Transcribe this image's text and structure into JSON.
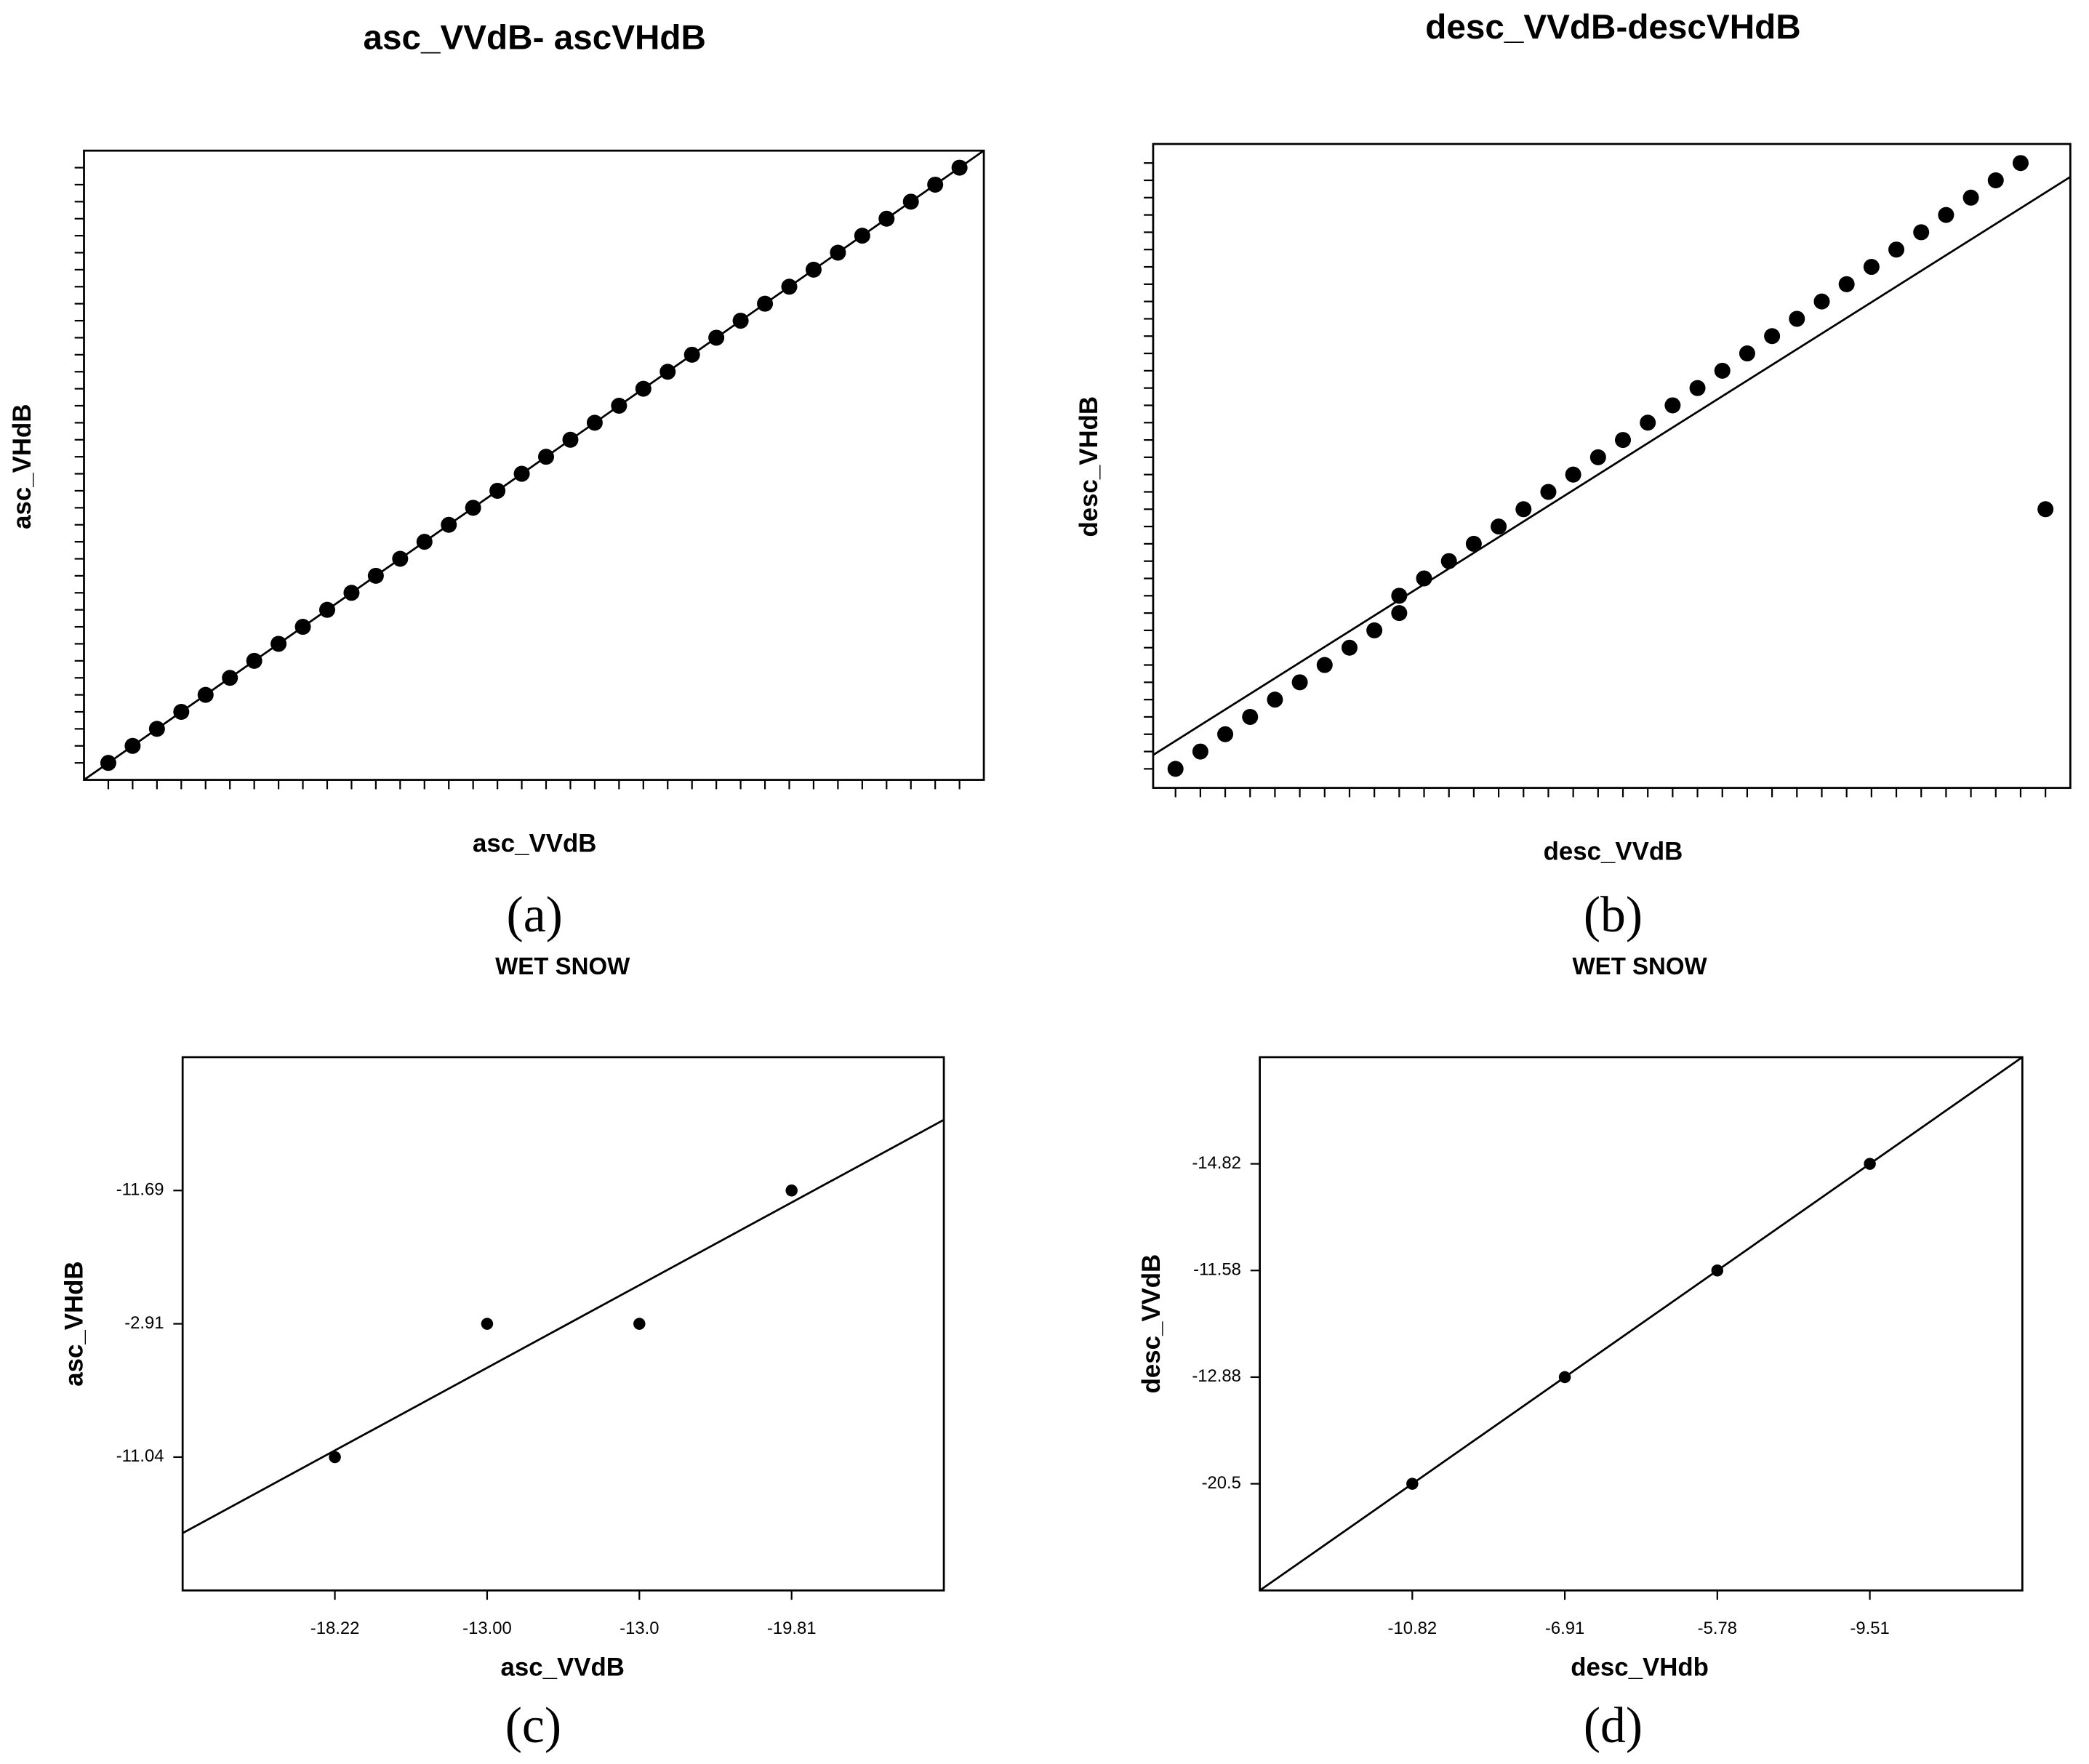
{
  "chart_data": [
    {
      "type": "scatter",
      "title": "asc_VVdB- ascVHdB",
      "xlabel": "asc_VVdB",
      "ylabel": "asc_VHdB",
      "panel_label": "(a)",
      "color": "#000000",
      "tick_labels": false,
      "x": [
        1,
        2,
        3,
        4,
        5,
        6,
        7,
        8,
        9,
        10,
        11,
        12,
        13,
        14,
        15,
        16,
        17,
        18,
        19,
        20,
        21,
        22,
        23,
        24,
        25,
        26,
        27,
        28,
        29,
        30,
        31,
        32,
        33,
        34,
        35,
        36
      ],
      "y": [
        1,
        2,
        3,
        4,
        5,
        6,
        7,
        8,
        9,
        10,
        11,
        12,
        13,
        14,
        15,
        16,
        17,
        18,
        19,
        20,
        21,
        22,
        23,
        24,
        25,
        26,
        27,
        28,
        29,
        30,
        31,
        32,
        33,
        34,
        35,
        36
      ],
      "xlim": [
        0,
        37
      ],
      "ylim": [
        0,
        37
      ],
      "xticks": [
        1,
        2,
        3,
        4,
        5,
        6,
        7,
        8,
        9,
        10,
        11,
        12,
        13,
        14,
        15,
        16,
        17,
        18,
        19,
        20,
        21,
        22,
        23,
        24,
        25,
        26,
        27,
        28,
        29,
        30,
        31,
        32,
        33,
        34,
        35,
        36
      ],
      "yticks": [
        1,
        2,
        3,
        4,
        5,
        6,
        7,
        8,
        9,
        10,
        11,
        12,
        13,
        14,
        15,
        16,
        17,
        18,
        19,
        20,
        21,
        22,
        23,
        24,
        25,
        26,
        27,
        28,
        29,
        30,
        31,
        32,
        33,
        34,
        35,
        36
      ],
      "fit_line": {
        "x": [
          0,
          37
        ],
        "y": [
          0,
          37
        ]
      }
    },
    {
      "type": "scatter",
      "title": "desc_VVdB-descVHdB",
      "xlabel": "desc_VVdB",
      "ylabel": "desc_VHdB",
      "panel_label": "(b)",
      "color": "#000000",
      "tick_labels": false,
      "x": [
        1,
        2,
        3,
        4,
        5,
        6,
        7,
        8,
        9,
        10,
        10,
        11,
        12,
        13,
        14,
        15,
        16,
        17,
        18,
        19,
        20,
        21,
        22,
        23,
        24,
        25,
        26,
        27,
        28,
        29,
        30,
        31,
        32,
        33,
        34,
        35,
        36
      ],
      "y": [
        1,
        2,
        3,
        4,
        5,
        6,
        7,
        8,
        9,
        10,
        11,
        12,
        13,
        14,
        15,
        16,
        17,
        18,
        19,
        20,
        21,
        22,
        23,
        24,
        25,
        26,
        27,
        28,
        29,
        30,
        31,
        32,
        33,
        34,
        35,
        36,
        16
      ],
      "xlim": [
        0.1,
        37
      ],
      "ylim": [
        -0.1,
        37.1
      ],
      "xticks": [
        1,
        2,
        3,
        4,
        5,
        6,
        7,
        8,
        9,
        10,
        11,
        12,
        13,
        14,
        15,
        16,
        17,
        18,
        19,
        20,
        21,
        22,
        23,
        24,
        25,
        26,
        27,
        28,
        29,
        30,
        31,
        32,
        33,
        34,
        35,
        36
      ],
      "yticks": [
        1,
        2,
        3,
        4,
        5,
        6,
        7,
        8,
        9,
        10,
        11,
        12,
        13,
        14,
        15,
        16,
        17,
        18,
        19,
        20,
        21,
        22,
        23,
        24,
        25,
        26,
        27,
        28,
        29,
        30,
        31,
        32,
        33,
        34,
        35,
        36
      ],
      "fit_line": {
        "x": [
          0.1,
          37
        ],
        "y": [
          1.8,
          35.2
        ]
      }
    },
    {
      "type": "scatter",
      "title": "WET SNOW",
      "xlabel": "asc_VVdB",
      "ylabel": "asc_VHdB",
      "panel_label": "(c)",
      "color": "#000000",
      "tick_labels": true,
      "x": [
        1,
        2,
        3,
        4
      ],
      "y": [
        1,
        2,
        2,
        3
      ],
      "xlim": [
        0,
        5
      ],
      "ylim": [
        0,
        4
      ],
      "xticks": [
        {
          "value": 1,
          "label": "-18.22"
        },
        {
          "value": 2,
          "label": "-13.00"
        },
        {
          "value": 3,
          "label": "-13.0"
        },
        {
          "value": 4,
          "label": "-19.81"
        }
      ],
      "yticks": [
        {
          "value": 1,
          "label": "-11.04"
        },
        {
          "value": 2,
          "label": "-2.91"
        },
        {
          "value": 3,
          "label": "-11.69"
        }
      ],
      "fit_line": {
        "x": [
          0,
          5
        ],
        "y": [
          0.43,
          3.53
        ]
      }
    },
    {
      "type": "scatter",
      "title": "WET SNOW",
      "xlabel": "desc_VHdb",
      "ylabel": "desc_VVdB",
      "panel_label": "(d)",
      "color": "#000000",
      "tick_labels": true,
      "x": [
        1,
        2,
        3,
        4
      ],
      "y": [
        1,
        2,
        3,
        4
      ],
      "xlim": [
        0,
        5
      ],
      "ylim": [
        0,
        5
      ],
      "xticks": [
        {
          "value": 1,
          "label": "-10.82"
        },
        {
          "value": 2,
          "label": "-6.91"
        },
        {
          "value": 3,
          "label": "-5.78"
        },
        {
          "value": 4,
          "label": "-9.51"
        }
      ],
      "yticks": [
        {
          "value": 1,
          "label": "-20.5"
        },
        {
          "value": 2,
          "label": "-12.88"
        },
        {
          "value": 3,
          "label": "-11.58"
        },
        {
          "value": 4,
          "label": "-14.82"
        }
      ],
      "fit_line": {
        "x": [
          0,
          5
        ],
        "y": [
          0,
          5
        ]
      }
    }
  ]
}
